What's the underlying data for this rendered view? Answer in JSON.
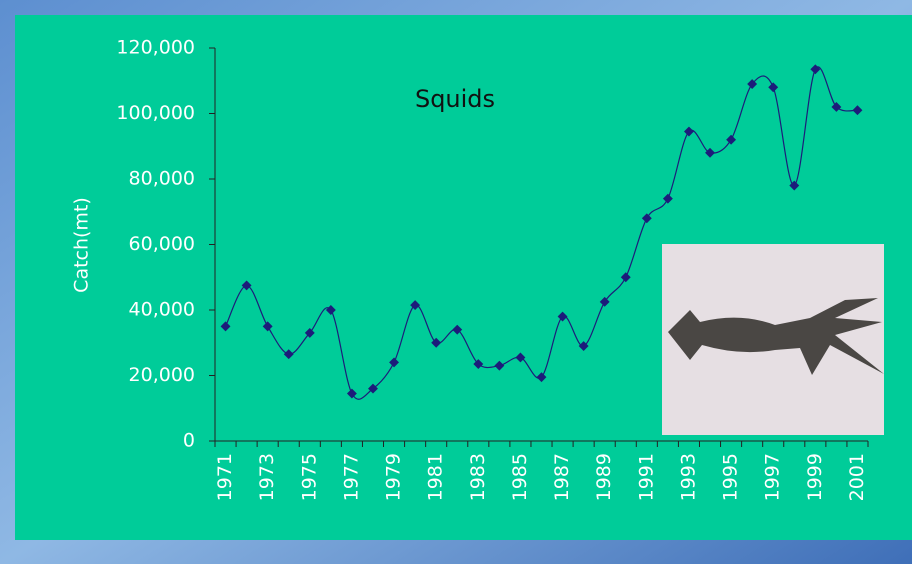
{
  "chart_data": {
    "type": "line",
    "title": "Squids",
    "y_label": "Catch(mt)",
    "categories": [
      "1971",
      null,
      "1973",
      null,
      "1975",
      null,
      "1977",
      null,
      "1979",
      null,
      "1981",
      null,
      "1983",
      null,
      "1985",
      null,
      "1987",
      null,
      "1989",
      null,
      "1991",
      null,
      "1993",
      null,
      "1995",
      null,
      "1997",
      null,
      "1999",
      null,
      "2001"
    ],
    "series": [
      {
        "name": "Squids",
        "color": "#1c1c7a",
        "values": [
          35000,
          47500,
          35000,
          26500,
          33000,
          40000,
          14500,
          16000,
          24000,
          41500,
          30000,
          34000,
          23500,
          23000,
          25500,
          19500,
          38000,
          29000,
          42500,
          50000,
          68000,
          74000,
          94500,
          88000,
          92000,
          109000,
          108000,
          78000,
          113500,
          102000,
          101000
        ]
      }
    ],
    "ylim": [
      0,
      120000
    ],
    "yticks": [
      0,
      {
        "value": 20000,
        "label": "20,000"
      },
      {
        "value": 40000,
        "label": "40,000"
      },
      {
        "value": 60000,
        "label": "60,000"
      },
      {
        "value": 80000,
        "label": "80,000"
      },
      {
        "value": 100000,
        "label": "100,000"
      },
      {
        "value": 120000,
        "label": "120,000"
      }
    ],
    "grid": false
  }
}
